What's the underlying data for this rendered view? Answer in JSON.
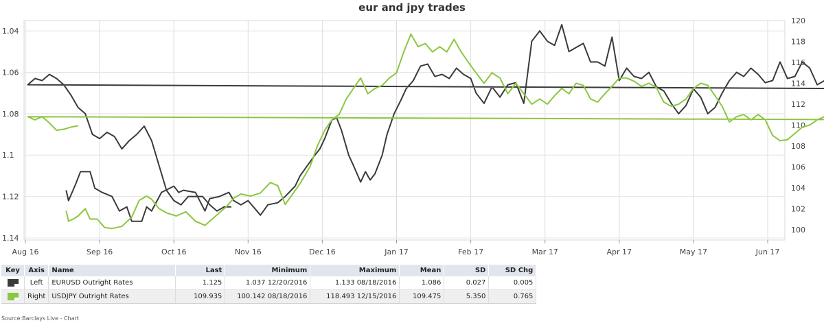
{
  "chart_data": {
    "type": "line",
    "title": "eur and jpy trades",
    "x_ticks": [
      "Aug 16",
      "Sep 16",
      "Oct 16",
      "Nov 16",
      "Dec 16",
      "Jan 17",
      "Feb 17",
      "Mar 17",
      "Apr 17",
      "May 17",
      "Jun 17"
    ],
    "left_axis": {
      "reversed": true,
      "range": [
        1.035,
        1.141
      ],
      "ticks": [
        "1.04",
        "1.06",
        "1.08",
        "1.1",
        "1.12",
        "1.14"
      ]
    },
    "right_axis": {
      "range": [
        99,
        120
      ],
      "ticks": [
        "100",
        "102",
        "104",
        "106",
        "108",
        "110",
        "112",
        "114",
        "116",
        "118",
        "120"
      ]
    },
    "grid": true,
    "series": [
      {
        "name": "EURUSD Outright Rates",
        "axis": "left",
        "color": "#3a3a3a",
        "points": [
          [
            "Aug 18",
            1.117
          ],
          [
            "Aug 19",
            1.122
          ],
          [
            "Aug 22",
            1.114
          ],
          [
            "Aug 24",
            1.108
          ],
          [
            "Aug 26",
            1.108
          ],
          [
            "Aug 28",
            1.108
          ],
          [
            "Aug 30",
            1.116
          ],
          [
            "Sep 2",
            1.118
          ],
          [
            "Sep 6",
            1.12
          ],
          [
            "Sep 9",
            1.127
          ],
          [
            "Sep 12",
            1.125
          ],
          [
            "Sep 14",
            1.132
          ],
          [
            "Sep 18",
            1.132
          ],
          [
            "Sep 20",
            1.125
          ],
          [
            "Sep 22",
            1.127
          ],
          [
            "Sep 26",
            1.118
          ],
          [
            "Oct 1",
            1.115
          ],
          [
            "Oct 3",
            1.118
          ],
          [
            "Oct 5",
            1.117
          ],
          [
            "Oct 10",
            1.118
          ],
          [
            "Oct 14",
            1.127
          ],
          [
            "Oct 16",
            1.121
          ],
          [
            "Oct 20",
            1.12
          ],
          [
            "Oct 24",
            1.118
          ],
          [
            "Oct 26",
            1.122
          ],
          [
            "Oct 29",
            1.124
          ],
          [
            "Nov 1",
            1.122
          ],
          [
            "Nov 6",
            1.129
          ],
          [
            "Nov 9",
            1.124
          ],
          [
            "Nov 13",
            1.123
          ],
          [
            "Nov 16",
            1.12
          ],
          [
            "Nov 20",
            1.115
          ],
          [
            "Nov 22",
            1.11
          ],
          [
            "Nov 25",
            1.105
          ],
          [
            "Nov 28",
            1.1
          ],
          [
            "Nov 30",
            1.097
          ],
          [
            "Dec 2",
            1.092
          ],
          [
            "Dec 5",
            1.083
          ],
          [
            "Dec 7",
            1.082
          ],
          [
            "Dec 9",
            1.088
          ],
          [
            "Dec 12",
            1.1
          ],
          [
            "Dec 14",
            1.105
          ],
          [
            "Dec 17",
            1.113
          ],
          [
            "Dec 19",
            1.108
          ],
          [
            "Dec 21",
            1.112
          ],
          [
            "Dec 23",
            1.109
          ],
          [
            "Dec 26",
            1.1
          ],
          [
            "Dec 28",
            1.09
          ],
          [
            "Dec 31",
            1.08
          ],
          [
            "Jan 3",
            1.073
          ],
          [
            "Jan 5",
            1.068
          ],
          [
            "Jan 8",
            1.064
          ],
          [
            "Jan 11",
            1.057
          ],
          [
            "Jan 14",
            1.056
          ],
          [
            "Jan 17",
            1.062
          ],
          [
            "Jan 20",
            1.061
          ],
          [
            "Jan 23",
            1.063
          ],
          [
            "Jan 26",
            1.058
          ],
          [
            "Jan 29",
            1.061
          ],
          [
            "Feb 1",
            1.063
          ],
          [
            "Feb 3",
            1.07
          ],
          [
            "Feb 6",
            1.075
          ],
          [
            "Feb 9",
            1.067
          ],
          [
            "Feb 12",
            1.072
          ],
          [
            "Feb 15",
            1.066
          ],
          [
            "Feb 18",
            1.065
          ],
          [
            "Feb 21",
            1.075
          ],
          [
            "Feb 24",
            1.045
          ],
          [
            "Feb 27",
            1.04
          ],
          [
            "Mar 2",
            1.045
          ],
          [
            "Mar 5",
            1.047
          ],
          [
            "Mar 8",
            1.037
          ],
          [
            "Mar 11",
            1.05
          ],
          [
            "Mar 14",
            1.048
          ],
          [
            "Mar 17",
            1.046
          ],
          [
            "Mar 20",
            1.055
          ],
          [
            "Mar 23",
            1.055
          ],
          [
            "Mar 26",
            1.057
          ],
          [
            "Mar 29",
            1.043
          ],
          [
            "Apr 1",
            1.064
          ],
          [
            "Apr 4",
            1.058
          ],
          [
            "Apr 7",
            1.062
          ],
          [
            "Apr 10",
            1.063
          ],
          [
            "Apr 13",
            1.06
          ],
          [
            "Apr 16",
            1.067
          ],
          [
            "Apr 19",
            1.069
          ],
          [
            "Apr 22",
            1.075
          ],
          [
            "Apr 25",
            1.08
          ],
          [
            "Apr 28",
            1.076
          ],
          [
            "May 1",
            1.068
          ],
          [
            "May 4",
            1.072
          ],
          [
            "May 7",
            1.08
          ],
          [
            "May 10",
            1.077
          ],
          [
            "May 13",
            1.07
          ],
          [
            "May 16",
            1.064
          ],
          [
            "May 19",
            1.06
          ],
          [
            "May 22",
            1.062
          ],
          [
            "May 25",
            1.058
          ],
          [
            "May 28",
            1.061
          ],
          [
            "May 31",
            1.065
          ],
          [
            "Jun 3",
            1.064
          ],
          [
            "Jun 6",
            1.055
          ],
          [
            "Jun 9",
            1.063
          ],
          [
            "Jun 12",
            1.062
          ],
          [
            "Jun 15",
            1.055
          ],
          [
            "Jun 18",
            1.058
          ],
          [
            "Jun 21",
            1.066
          ],
          [
            "Jun 24",
            1.064
          ],
          [
            "Jun 27",
            1.058
          ],
          [
            "Jun 30",
            1.063
          ],
          [
            "Jul 3",
            1.075
          ],
          [
            "Jul 6",
            1.08
          ],
          [
            "Jul 9",
            1.082
          ],
          [
            "Jul 12",
            1.085
          ],
          [
            "Jul 15",
            1.08
          ],
          [
            "Jul 18",
            1.088
          ],
          [
            "Jul 21",
            1.084
          ],
          [
            "Jul 24",
            1.078
          ],
          [
            "Jul 27",
            1.074
          ],
          [
            "Jul 30",
            1.068
          ],
          [
            "Aug 2",
            1.066
          ],
          [
            "Aug 5",
            1.063
          ],
          [
            "Aug 8",
            1.064
          ],
          [
            "Aug 11",
            1.061
          ],
          [
            "Aug 14",
            1.063
          ],
          [
            "Aug 17",
            1.066
          ],
          [
            "Aug 20",
            1.071
          ],
          [
            "Aug 23",
            1.077
          ],
          [
            "Aug 26",
            1.08
          ],
          [
            "Aug 29",
            1.09
          ],
          [
            "Sep 1",
            1.092
          ],
          [
            "Sep 4",
            1.089
          ],
          [
            "Sep 7",
            1.091
          ],
          [
            "Sep 10",
            1.097
          ],
          [
            "Sep 13",
            1.093
          ],
          [
            "Sep 16",
            1.09
          ],
          [
            "Sep 19",
            1.086
          ],
          [
            "Sep 22",
            1.093
          ],
          [
            "Sep 25",
            1.105
          ],
          [
            "Sep 28",
            1.117
          ],
          [
            "Oct 1",
            1.122
          ],
          [
            "Oct 4",
            1.124
          ],
          [
            "Oct 7",
            1.12
          ],
          [
            "Oct 10",
            1.12
          ],
          [
            "Oct 13",
            1.12
          ],
          [
            "Oct 16",
            1.124
          ],
          [
            "Oct 19",
            1.127
          ],
          [
            "Oct 22",
            1.125
          ],
          [
            "Oct 25",
            1.125
          ]
        ]
      },
      {
        "name": "USDJPY Outright Rates",
        "axis": "right",
        "color": "#8cc63f",
        "points": [
          [
            "Aug 18",
            101.8
          ],
          [
            "Aug 19",
            100.8
          ],
          [
            "Aug 21",
            101.0
          ],
          [
            "Aug 23",
            101.3
          ],
          [
            "Aug 26",
            102.0
          ],
          [
            "Aug 28",
            101.0
          ],
          [
            "Aug 31",
            101.0
          ],
          [
            "Sep 3",
            100.2
          ],
          [
            "Sep 6",
            100.1
          ],
          [
            "Sep 10",
            100.3
          ],
          [
            "Sep 14",
            101.2
          ],
          [
            "Sep 17",
            102.8
          ],
          [
            "Sep 20",
            103.2
          ],
          [
            "Sep 22",
            102.9
          ],
          [
            "Sep 25",
            102.0
          ],
          [
            "Sep 28",
            101.6
          ],
          [
            "Oct 2",
            101.3
          ],
          [
            "Oct 6",
            101.7
          ],
          [
            "Oct 10",
            100.8
          ],
          [
            "Oct 14",
            100.4
          ],
          [
            "Oct 17",
            101.0
          ],
          [
            "Oct 20",
            101.6
          ],
          [
            "Oct 23",
            102.2
          ],
          [
            "Oct 26",
            103.0
          ],
          [
            "Oct 29",
            103.4
          ],
          [
            "Nov 2",
            103.2
          ],
          [
            "Nov 6",
            103.5
          ],
          [
            "Nov 10",
            104.5
          ],
          [
            "Nov 13",
            104.2
          ],
          [
            "Nov 16",
            102.4
          ],
          [
            "Nov 19",
            103.4
          ],
          [
            "Nov 22",
            104.4
          ],
          [
            "Nov 26",
            106.0
          ],
          [
            "Nov 29",
            108.0
          ],
          [
            "Dec 2",
            109.5
          ],
          [
            "Dec 5",
            110.5
          ],
          [
            "Dec 8",
            111.0
          ],
          [
            "Dec 11",
            112.5
          ],
          [
            "Dec 14",
            113.5
          ],
          [
            "Dec 17",
            114.5
          ],
          [
            "Dec 20",
            113.0
          ],
          [
            "Dec 23",
            113.5
          ],
          [
            "Dec 26",
            113.8
          ],
          [
            "Dec 29",
            114.5
          ],
          [
            "Jan 1",
            115.0
          ],
          [
            "Jan 4",
            117.0
          ],
          [
            "Jan 7",
            118.7
          ],
          [
            "Jan 10",
            117.5
          ],
          [
            "Jan 13",
            117.8
          ],
          [
            "Jan 16",
            117.0
          ],
          [
            "Jan 19",
            117.5
          ],
          [
            "Jan 22",
            117.0
          ],
          [
            "Jan 25",
            118.2
          ],
          [
            "Jan 28",
            117.0
          ],
          [
            "Jan 31",
            116.0
          ],
          [
            "Feb 3",
            115.0
          ],
          [
            "Feb 6",
            114.0
          ],
          [
            "Feb 9",
            115.0
          ],
          [
            "Feb 12",
            114.5
          ],
          [
            "Feb 15",
            113.0
          ],
          [
            "Feb 18",
            114.0
          ],
          [
            "Feb 21",
            113.0
          ],
          [
            "Feb 24",
            112.0
          ],
          [
            "Feb 27",
            112.5
          ],
          [
            "Mar 2",
            112.0
          ],
          [
            "Mar 5",
            112.8
          ],
          [
            "Mar 8",
            113.5
          ],
          [
            "Mar 11",
            113.0
          ],
          [
            "Mar 14",
            114.0
          ],
          [
            "Mar 17",
            113.8
          ],
          [
            "Mar 20",
            112.5
          ],
          [
            "Mar 23",
            112.2
          ],
          [
            "Mar 26",
            113.0
          ],
          [
            "Mar 29",
            113.7
          ],
          [
            "Apr 1",
            114.5
          ],
          [
            "Apr 4",
            114.5
          ],
          [
            "Apr 7",
            114.2
          ],
          [
            "Apr 10",
            113.7
          ],
          [
            "Apr 13",
            114.0
          ],
          [
            "Apr 16",
            113.6
          ],
          [
            "Apr 19",
            112.2
          ],
          [
            "Apr 22",
            111.8
          ],
          [
            "Apr 25",
            112.0
          ],
          [
            "Apr 28",
            112.5
          ],
          [
            "May 1",
            113.5
          ],
          [
            "May 4",
            114.0
          ],
          [
            "May 7",
            113.8
          ],
          [
            "May 10",
            112.8
          ],
          [
            "May 13",
            111.8
          ],
          [
            "May 16",
            110.3
          ],
          [
            "May 19",
            110.8
          ],
          [
            "May 22",
            111.0
          ],
          [
            "May 25",
            110.5
          ],
          [
            "May 28",
            111.0
          ],
          [
            "May 31",
            110.5
          ],
          [
            "Jun 3",
            109.0
          ],
          [
            "Jun 6",
            108.5
          ],
          [
            "Jun 9",
            108.6
          ],
          [
            "Jun 12",
            109.2
          ],
          [
            "Jun 15",
            109.8
          ],
          [
            "Jun 18",
            110.0
          ],
          [
            "Jun 21",
            110.5
          ],
          [
            "Jun 24",
            110.8
          ],
          [
            "Jun 27",
            111.2
          ],
          [
            "Jun 30",
            111.5
          ],
          [
            "Jul 3",
            111.8
          ],
          [
            "Jul 6",
            112.5
          ],
          [
            "Jul 9",
            113.0
          ],
          [
            "Jul 12",
            114.0
          ],
          [
            "Jul 15",
            113.8
          ],
          [
            "Jul 18",
            113.3
          ],
          [
            "Jul 21",
            112.7
          ],
          [
            "Jul 24",
            111.2
          ],
          [
            "Jul 27",
            111.0
          ],
          [
            "Jul 30",
            110.5
          ],
          [
            "Aug 2",
            110.8
          ],
          [
            "Aug 5",
            110.5
          ],
          [
            "Aug 8",
            110.8
          ],
          [
            "Aug 11",
            110.2
          ],
          [
            "Aug 14",
            109.5
          ],
          [
            "Aug 17",
            109.6
          ],
          [
            "Aug 20",
            109.8
          ],
          [
            "Aug 23",
            109.935
          ]
        ]
      }
    ]
  },
  "table": {
    "headers": {
      "key": "Key",
      "axis": "Axis",
      "name": "Name",
      "last": "Last",
      "minimum": "Minimum",
      "maximum": "Maximum",
      "mean": "Mean",
      "sd": "SD",
      "sd_chg": "SD Chg"
    },
    "rows": [
      {
        "color": "#3a3a3a",
        "axis": "Left",
        "name": "EURUSD Outright Rates",
        "last": "1.125",
        "minimum": "1.037 12/20/2016",
        "maximum": "1.133 08/18/2016",
        "mean": "1.086",
        "sd": "0.027",
        "sd_chg": "0.005"
      },
      {
        "color": "#8cc63f",
        "axis": "Right",
        "name": "USDJPY Outright Rates",
        "last": "109.935",
        "minimum": "100.142 08/18/2016",
        "maximum": "118.493 12/15/2016",
        "mean": "109.475",
        "sd": "5.350",
        "sd_chg": "0.765"
      }
    ]
  },
  "source": "Source:Barclays Live - Chart"
}
